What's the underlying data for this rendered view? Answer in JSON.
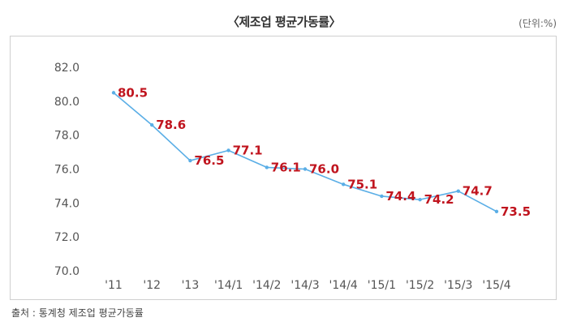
{
  "title": "〈제조업 평균가동률〉",
  "unit_label": "(단위:%)",
  "source": "출처 : 통계청 제조업 평균가동률",
  "colors": {
    "line": "#5aaee6",
    "marker": "#5aaee6",
    "label": "#c0141e",
    "axis_text": "#555555",
    "frame": "#cfcfcf"
  },
  "chart_data": {
    "type": "line",
    "title": "〈제조업 평균가동률〉",
    "xlabel": "",
    "ylabel": "",
    "categories": [
      "'11",
      "'12",
      "'13",
      "'14/1",
      "'14/2",
      "'14/3",
      "'14/4",
      "'15/1",
      "'15/2",
      "'15/3",
      "'15/4"
    ],
    "series": [
      {
        "values": [
          80.5,
          78.6,
          76.5,
          77.1,
          76.1,
          76.0,
          75.1,
          74.4,
          74.2,
          74.7,
          73.5
        ]
      }
    ],
    "y_ticks": [
      "70.0",
      "72.0",
      "74.0",
      "76.0",
      "78.0",
      "80.0",
      "82.0"
    ],
    "ylim": [
      70,
      82
    ],
    "grid": false,
    "legend": "none",
    "data_labels": [
      "80.5",
      "78.6",
      "76.5",
      "77.1",
      "76.1",
      "76.0",
      "75.1",
      "74.4",
      "74.2",
      "74.7",
      "73.5"
    ]
  }
}
